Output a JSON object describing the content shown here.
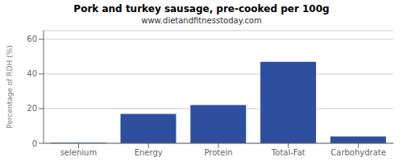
{
  "chart_data": {
    "type": "bar",
    "title": "Pork and turkey sausage, pre-cooked per 100g",
    "subtitle": "www.dietandfitnesstoday.com",
    "categories": [
      "selenium",
      "Energy",
      "Protein",
      "Total-Fat",
      "Carbohydrate"
    ],
    "values": [
      0.3,
      17,
      22,
      47,
      4
    ],
    "color": "#2e4f9e",
    "ylabel": "Percentage of RDH (%)",
    "ylim": [
      0,
      65
    ],
    "yticks": [
      0,
      20,
      40,
      60
    ],
    "grid": true
  }
}
